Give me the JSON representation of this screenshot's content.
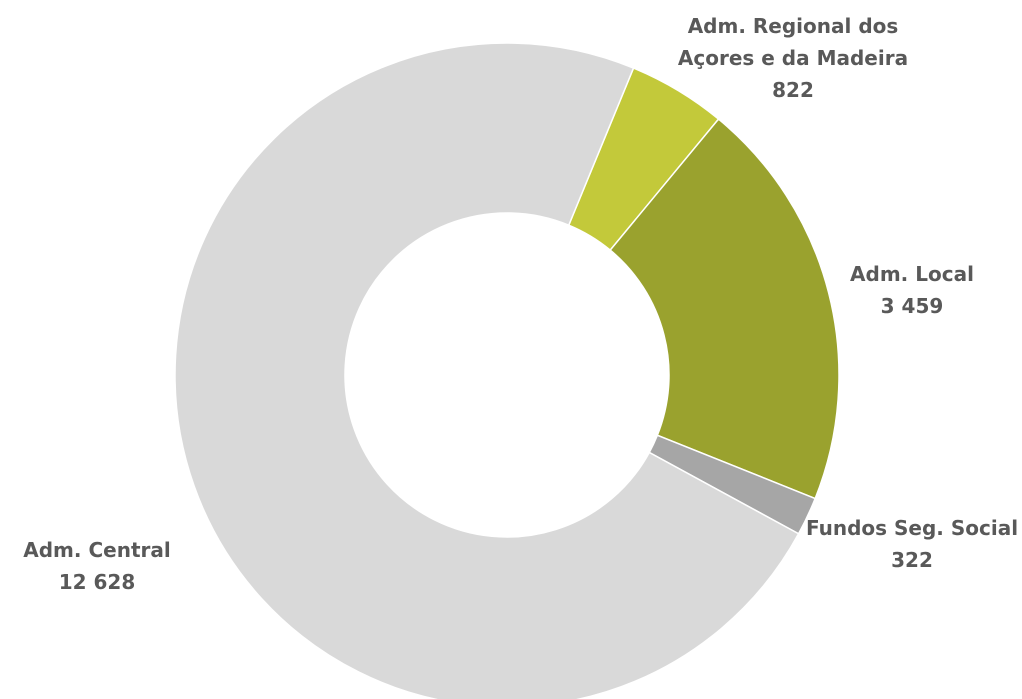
{
  "chart_data": {
    "type": "pie",
    "categories": [
      "Adm. Regional dos Açores e da Madeira",
      "Adm. Local",
      "Fundos Seg. Social",
      "Adm. Central"
    ],
    "values": [
      822,
      3459,
      322,
      12628
    ],
    "value_labels": [
      "822",
      "3 459",
      "322",
      "12 628"
    ],
    "colors": [
      "#c3c93a",
      "#9aa22e",
      "#a6a6a6",
      "#d9d9d9"
    ],
    "donut": true
  }
}
